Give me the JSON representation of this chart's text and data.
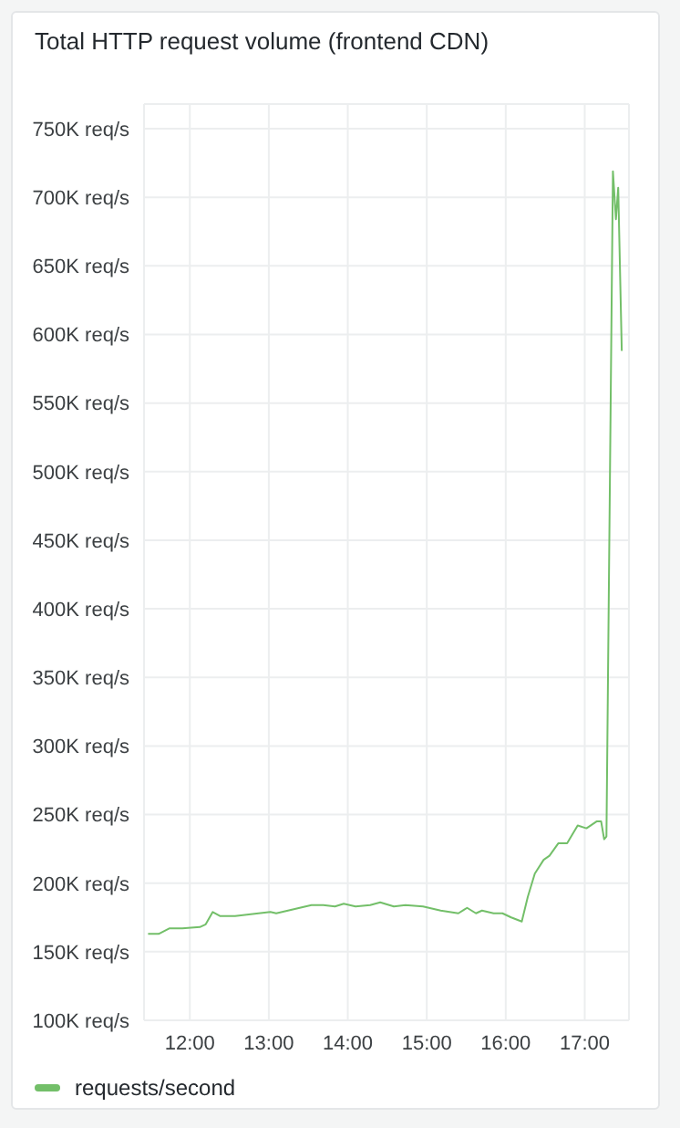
{
  "chart_data": {
    "type": "line",
    "title": "Total HTTP request volume (frontend CDN)",
    "x": [
      11.471,
      11.605,
      11.739,
      11.904,
      12.127,
      12.201,
      12.29,
      12.386,
      12.573,
      12.871,
      13.02,
      13.094,
      13.243,
      13.391,
      13.54,
      13.69,
      13.837,
      13.949,
      14.098,
      14.283,
      14.411,
      14.583,
      14.73,
      14.953,
      15.176,
      15.4,
      15.511,
      15.623,
      15.699,
      15.846,
      15.958,
      16.069,
      16.203,
      16.279,
      16.368,
      16.48,
      16.554,
      16.665,
      16.777,
      16.911,
      17.022,
      17.15,
      17.208,
      17.246,
      17.275,
      17.357,
      17.395,
      17.424,
      17.469
    ],
    "series": [
      {
        "name": "requests/second",
        "color": "#73bf69",
        "values": [
          163,
          163,
          167,
          167,
          168,
          170,
          179,
          176,
          176,
          178,
          179,
          178,
          180,
          182,
          184,
          184,
          183,
          185,
          183,
          184,
          186,
          183,
          184,
          183,
          180,
          178,
          182,
          178,
          180,
          178,
          178,
          175,
          172,
          190,
          207,
          217,
          220,
          229,
          229,
          242,
          240,
          245,
          245,
          232,
          234,
          719,
          684,
          707,
          588
        ]
      }
    ],
    "xlim": [
      11.42,
      17.56
    ],
    "xticks": [
      {
        "value": 12,
        "label": "12:00"
      },
      {
        "value": 13,
        "label": "13:00"
      },
      {
        "value": 14,
        "label": "14:00"
      },
      {
        "value": 15,
        "label": "15:00"
      },
      {
        "value": 16,
        "label": "16:00"
      },
      {
        "value": 17,
        "label": "17:00"
      }
    ],
    "ylim": [
      100,
      768
    ],
    "yticks": [
      {
        "value": 100,
        "label": "100K req/s"
      },
      {
        "value": 150,
        "label": "150K req/s"
      },
      {
        "value": 200,
        "label": "200K req/s"
      },
      {
        "value": 250,
        "label": "250K req/s"
      },
      {
        "value": 300,
        "label": "300K req/s"
      },
      {
        "value": 350,
        "label": "350K req/s"
      },
      {
        "value": 400,
        "label": "400K req/s"
      },
      {
        "value": 450,
        "label": "450K req/s"
      },
      {
        "value": 500,
        "label": "500K req/s"
      },
      {
        "value": 550,
        "label": "550K req/s"
      },
      {
        "value": 600,
        "label": "600K req/s"
      },
      {
        "value": 650,
        "label": "650K req/s"
      },
      {
        "value": 700,
        "label": "700K req/s"
      },
      {
        "value": 750,
        "label": "750K req/s"
      }
    ],
    "grid": true,
    "legend": "bottom left",
    "marker": "none",
    "line_style": "solid"
  }
}
